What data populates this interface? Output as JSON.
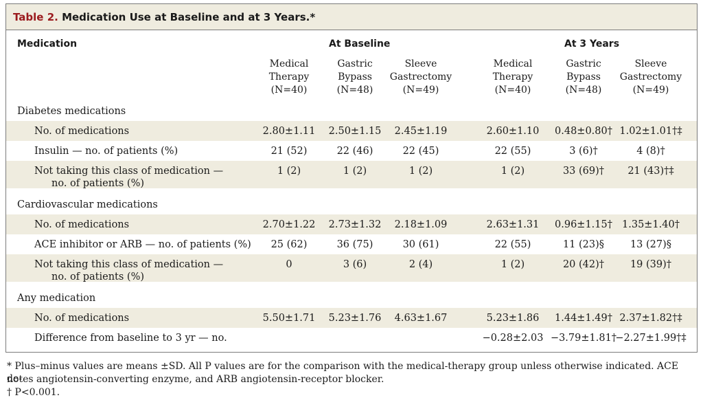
{
  "table": {
    "label": "Table 2.",
    "title": " Medication Use at Baseline and at 3 Years.*",
    "header_medication": "Medication",
    "group_baseline": "At Baseline",
    "group_3yr": "At 3 Years",
    "columns": [
      [
        "Medical",
        "Therapy",
        "(N=40)"
      ],
      [
        "Gastric",
        "Bypass",
        "(N=48)"
      ],
      [
        "Sleeve",
        "Gastrectomy",
        "(N=49)"
      ],
      [
        "Medical",
        "Therapy",
        "(N=40)"
      ],
      [
        "Gastric",
        "Bypass",
        "(N=48)"
      ],
      [
        "Sleeve",
        "Gastrectomy",
        "(N=49)"
      ]
    ],
    "rows": [
      {
        "label": "Diabetes medications",
        "cells": [
          "",
          "",
          "",
          "",
          "",
          ""
        ]
      },
      {
        "label": "No. of medications",
        "cells": [
          "2.80±1.11",
          "2.50±1.15",
          "2.45±1.19",
          "2.60±1.10",
          "0.48±0.80†",
          "1.02±1.01†‡"
        ]
      },
      {
        "label": "Insulin — no. of patients (%)",
        "cells": [
          "21 (52)",
          "22 (46)",
          "22 (45)",
          "22 (55)",
          "3 (6)†",
          "4 (8)†"
        ]
      },
      {
        "label": "Not taking this class of medication —",
        "label2": "no. of patients (%)",
        "cells": [
          "1 (2)",
          "1 (2)",
          "1 (2)",
          "1 (2)",
          "33 (69)†",
          "21 (43)†‡"
        ]
      },
      {
        "label": "Cardiovascular medications",
        "cells": [
          "",
          "",
          "",
          "",
          "",
          ""
        ]
      },
      {
        "label": "No. of medications",
        "cells": [
          "2.70±1.22",
          "2.73±1.32",
          "2.18±1.09",
          "2.63±1.31",
          "0.96±1.15†",
          "1.35±1.40†"
        ]
      },
      {
        "label": "ACE inhibitor or ARB — no. of patients (%)",
        "cells": [
          "25 (62)",
          "36 (75)",
          "30 (61)",
          "22 (55)",
          "11 (23)§",
          "13 (27)§"
        ]
      },
      {
        "label": "Not taking this class of medication —",
        "label2": "no. of patients (%)",
        "cells": [
          "0",
          "3 (6)",
          "2 (4)",
          "1 (2)",
          "20 (42)†",
          "19 (39)†"
        ]
      },
      {
        "label": "Any medication",
        "cells": [
          "",
          "",
          "",
          "",
          "",
          ""
        ]
      },
      {
        "label": "No. of medications",
        "cells": [
          "5.50±1.71",
          "5.23±1.76",
          "4.63±1.67",
          "5.23±1.86",
          "1.44±1.49†",
          "2.37±1.82†‡"
        ]
      },
      {
        "label": "Difference from baseline to 3 yr — no.",
        "cells": [
          "",
          "",
          "",
          "−0.28±2.03",
          "−3.79±1.81†",
          "−2.27±1.99†‡"
        ]
      }
    ]
  },
  "footnotes": [
    "* Plus–minus values are means ±SD. All P values are for the comparison with the medical-therapy group unless otherwise indicated. ACE de-",
    "notes angiotensin-converting enzyme, and ARB angiotensin-receptor blocker.",
    "† P<0.001."
  ]
}
